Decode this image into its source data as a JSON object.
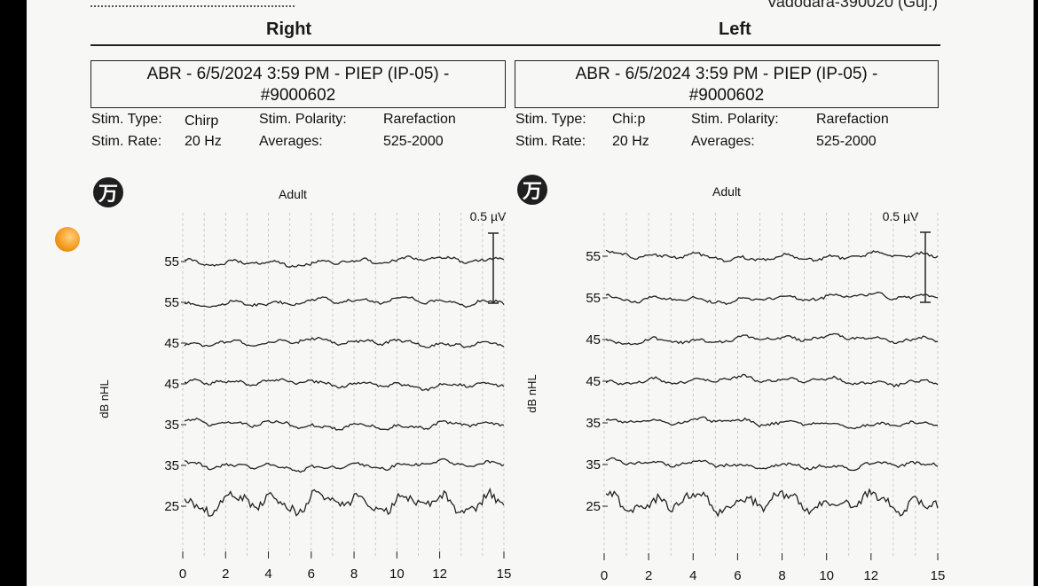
{
  "header": {
    "address_text": "Vadodara-390020 (Guj.)",
    "right_label": "Right",
    "left_label": "Left"
  },
  "panels": [
    {
      "side": "right",
      "box_line1": "ABR - 6/5/2024 3:59 PM - PIEP (IP-05) -",
      "box_line2": "#9000602",
      "stim_type_label": "Stim. Type:",
      "stim_type_value": "Chirp",
      "stim_rate_label": "Stim. Rate:",
      "stim_rate_value": "20 Hz",
      "stim_polarity_label": "Stim. Polarity:",
      "stim_polarity_value": "Rarefaction",
      "averages_label": "Averages:",
      "averages_value": "525-2000",
      "logo_text": "万"
    },
    {
      "side": "left",
      "box_line1": "ABR - 6/5/2024 3:59 PM - PIEP (IP-05) -",
      "box_line2": "#9000602",
      "stim_type_label": "Stim. Type:",
      "stim_type_value": "Chi:p",
      "stim_rate_label": "Stim. Rate:",
      "stim_rate_value": "20 Hz",
      "stim_polarity_label": "Stim. Polarity:",
      "stim_polarity_value": "Rarefaction",
      "averages_label": "Averages:",
      "averages_value": "525-2000",
      "logo_text": "万"
    }
  ],
  "chart_data": [
    {
      "type": "line",
      "title": "Adult",
      "ylabel": "dB nHL",
      "xlim": [
        0,
        15
      ],
      "x_ticks": [
        "0",
        "2",
        "4",
        "6",
        "8",
        "10",
        "12",
        "15"
      ],
      "scale_bar_label": "0.5 µV",
      "traces": [
        "55",
        "55",
        "45",
        "45",
        "35",
        "35",
        "25"
      ],
      "grid": true
    },
    {
      "type": "line",
      "title": "Adult",
      "ylabel": "dB nHL",
      "xlim": [
        0,
        15
      ],
      "x_ticks": [
        "0",
        "2",
        "4",
        "6",
        "8",
        "10",
        "12",
        "15"
      ],
      "scale_bar_label": "0.5 µV",
      "traces": [
        "55",
        "55",
        "45",
        "45",
        "35",
        "35",
        "25"
      ],
      "grid": true
    }
  ]
}
